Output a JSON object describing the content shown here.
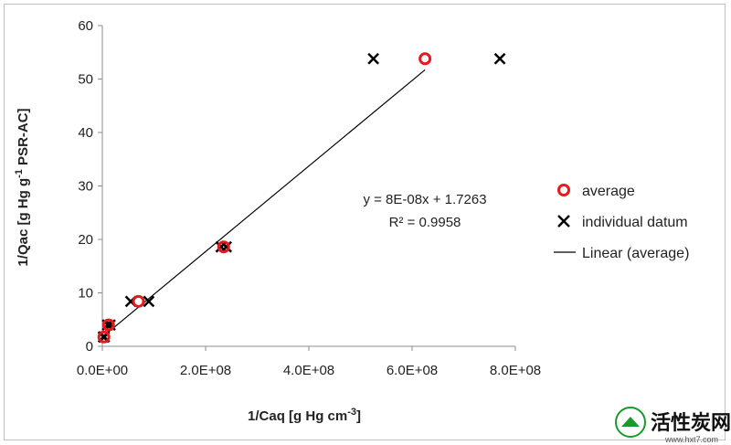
{
  "chart_data": {
    "type": "scatter",
    "xlabel": "1/Caq [g Hg cm",
    "xlabel_sup": "-3",
    "xlabel_tail": "]",
    "ylabel": "1/Qac [g Hg g",
    "ylabel_sup": "-1",
    "ylabel_tail": " PSR-AC]",
    "xlim": [
      0,
      800000000
    ],
    "ylim": [
      0,
      60
    ],
    "x_ticks": [
      0,
      200000000,
      400000000,
      600000000,
      800000000
    ],
    "x_tick_labels": [
      "0.0E+00",
      "2.0E+08",
      "4.0E+08",
      "6.0E+08",
      "8.0E+08"
    ],
    "y_ticks": [
      0,
      10,
      20,
      30,
      40,
      50,
      60
    ],
    "y_tick_labels": [
      "0",
      "10",
      "20",
      "30",
      "40",
      "50",
      "60"
    ],
    "grid": false,
    "legend_position": "right",
    "series": [
      {
        "name": "average",
        "marker": "open-circle",
        "color": "#e8191c",
        "points": [
          {
            "x": 3000000,
            "y": 1.75
          },
          {
            "x": 12000000,
            "y": 4.0
          },
          {
            "x": 70000000,
            "y": 8.4
          },
          {
            "x": 235000000,
            "y": 18.6
          },
          {
            "x": 625000000,
            "y": 53.8
          }
        ]
      },
      {
        "name": "individual datum",
        "marker": "x",
        "color": "#000000",
        "points": [
          {
            "x": 2000000,
            "y": 1.75
          },
          {
            "x": 4000000,
            "y": 1.75
          },
          {
            "x": 10000000,
            "y": 4.0
          },
          {
            "x": 15000000,
            "y": 4.0
          },
          {
            "x": 55000000,
            "y": 8.4
          },
          {
            "x": 90000000,
            "y": 8.4
          },
          {
            "x": 230000000,
            "y": 18.6
          },
          {
            "x": 240000000,
            "y": 18.6
          },
          {
            "x": 525000000,
            "y": 53.8
          },
          {
            "x": 770000000,
            "y": 53.8
          }
        ]
      },
      {
        "name": "Linear (average)",
        "type": "line",
        "color": "#000000",
        "slope": 8e-08,
        "intercept": 1.7263,
        "x_range": [
          0,
          625000000
        ]
      }
    ],
    "annotations": {
      "equation": "y = 8E-08x + 1.7263",
      "r2": "R² = 0.9958"
    }
  },
  "watermark": {
    "text": "活性炭网",
    "url": "www.hxt7.com",
    "color": "#1a9a2a"
  }
}
